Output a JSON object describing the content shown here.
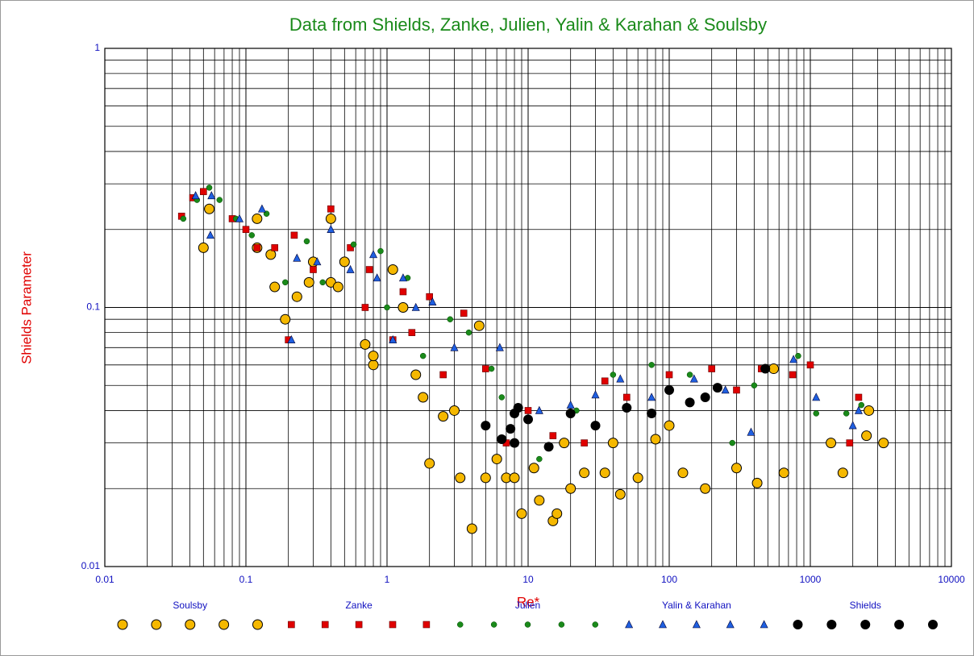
{
  "chart_data": {
    "type": "scatter",
    "title": "Data from Shields, Zanke, Julien, Yalin & Karahan & Soulsby",
    "x_label": "Re*",
    "y_label": "Shields Parameter",
    "log_x": true,
    "log_y": true,
    "grid": true,
    "minor_grid": true,
    "legend": "bottom",
    "xlim": [
      0.01,
      10000
    ],
    "ylim": [
      0.01,
      1
    ],
    "xticks": [
      0.01,
      0.1,
      1,
      10,
      100,
      1000,
      10000
    ],
    "yticks": [
      0.01,
      0.1,
      1
    ],
    "series": [
      {
        "name": "Soulsby",
        "color": "#f5b800",
        "marker": "circle",
        "x": [
          0.05,
          0.055,
          0.12,
          0.12,
          0.15,
          0.16,
          0.19,
          0.23,
          0.28,
          0.3,
          0.4,
          0.4,
          0.45,
          0.5,
          0.7,
          0.8,
          0.8,
          1.1,
          1.3,
          1.6,
          1.8,
          2,
          2.5,
          3,
          3.3,
          4,
          4.5,
          5,
          6,
          7,
          8,
          9,
          11,
          12,
          15,
          16,
          20,
          25,
          35,
          45,
          60,
          80,
          125,
          180,
          300,
          420,
          550,
          650,
          1400,
          1700,
          2600,
          3300,
          2500,
          18,
          40,
          100
        ],
        "values": [
          0.17,
          0.24,
          0.22,
          0.17,
          0.16,
          0.12,
          0.09,
          0.11,
          0.125,
          0.15,
          0.22,
          0.125,
          0.12,
          0.15,
          0.072,
          0.06,
          0.065,
          0.14,
          0.1,
          0.055,
          0.045,
          0.025,
          0.038,
          0.04,
          0.022,
          0.014,
          0.085,
          0.022,
          0.026,
          0.022,
          0.022,
          0.016,
          0.024,
          0.018,
          0.015,
          0.016,
          0.02,
          0.023,
          0.023,
          0.019,
          0.022,
          0.031,
          0.023,
          0.02,
          0.024,
          0.021,
          0.058,
          0.023,
          0.03,
          0.023,
          0.04,
          0.03,
          0.032,
          0.03,
          0.03,
          0.035
        ]
      },
      {
        "name": "Zanke",
        "color": "#e00000",
        "marker": "square",
        "x": [
          0.035,
          0.042,
          0.05,
          0.08,
          0.1,
          0.12,
          0.16,
          0.2,
          0.22,
          0.3,
          0.4,
          0.55,
          0.7,
          0.75,
          1.1,
          1.3,
          1.5,
          2,
          2.5,
          3.5,
          5,
          7,
          10,
          15,
          25,
          35,
          50,
          100,
          200,
          300,
          450,
          750,
          1000,
          2200,
          1900
        ],
        "values": [
          0.225,
          0.265,
          0.28,
          0.22,
          0.2,
          0.17,
          0.17,
          0.075,
          0.19,
          0.14,
          0.24,
          0.17,
          0.1,
          0.14,
          0.075,
          0.115,
          0.08,
          0.11,
          0.055,
          0.095,
          0.058,
          0.03,
          0.04,
          0.032,
          0.03,
          0.052,
          0.045,
          0.055,
          0.058,
          0.048,
          0.058,
          0.055,
          0.06,
          0.045,
          0.03
        ]
      },
      {
        "name": "Julien",
        "color": "#1a8a1a",
        "marker": "dot",
        "x": [
          0.036,
          0.045,
          0.055,
          0.065,
          0.085,
          0.11,
          0.14,
          0.19,
          0.27,
          0.35,
          0.58,
          0.9,
          1.0,
          1.4,
          1.8,
          2.8,
          3.8,
          5.5,
          6.5,
          12,
          22,
          40,
          75,
          140,
          280,
          400,
          820,
          1100,
          2300,
          1800
        ],
        "values": [
          0.22,
          0.26,
          0.29,
          0.26,
          0.22,
          0.19,
          0.23,
          0.125,
          0.18,
          0.125,
          0.175,
          0.165,
          0.1,
          0.13,
          0.065,
          0.09,
          0.08,
          0.058,
          0.045,
          0.026,
          0.04,
          0.055,
          0.06,
          0.055,
          0.03,
          0.05,
          0.065,
          0.039,
          0.042,
          0.039
        ]
      },
      {
        "name": "Yalin & Karahan",
        "color": "#1f5fe0",
        "marker": "triangle",
        "x": [
          0.044,
          0.057,
          0.056,
          0.09,
          0.13,
          0.21,
          0.23,
          0.32,
          0.4,
          0.55,
          0.8,
          0.85,
          1.1,
          1.3,
          1.6,
          2.1,
          3,
          6.3,
          8,
          12,
          20,
          30,
          45,
          75,
          150,
          250,
          380,
          760,
          1100,
          2200,
          2000
        ],
        "values": [
          0.27,
          0.27,
          0.19,
          0.22,
          0.24,
          0.075,
          0.155,
          0.15,
          0.2,
          0.14,
          0.16,
          0.13,
          0.075,
          0.13,
          0.1,
          0.105,
          0.07,
          0.07,
          0.03,
          0.04,
          0.042,
          0.046,
          0.053,
          0.045,
          0.053,
          0.048,
          0.033,
          0.063,
          0.045,
          0.04,
          0.035
        ]
      },
      {
        "name": "Shields",
        "color": "#000000",
        "marker": "circle",
        "x": [
          5,
          7.5,
          8,
          8.5,
          8,
          10,
          14,
          20,
          30,
          50,
          75,
          100,
          140,
          220,
          480,
          180,
          6.5
        ],
        "values": [
          0.035,
          0.034,
          0.039,
          0.041,
          0.03,
          0.037,
          0.029,
          0.039,
          0.035,
          0.041,
          0.039,
          0.048,
          0.043,
          0.049,
          0.058,
          0.045,
          0.031
        ]
      }
    ]
  }
}
